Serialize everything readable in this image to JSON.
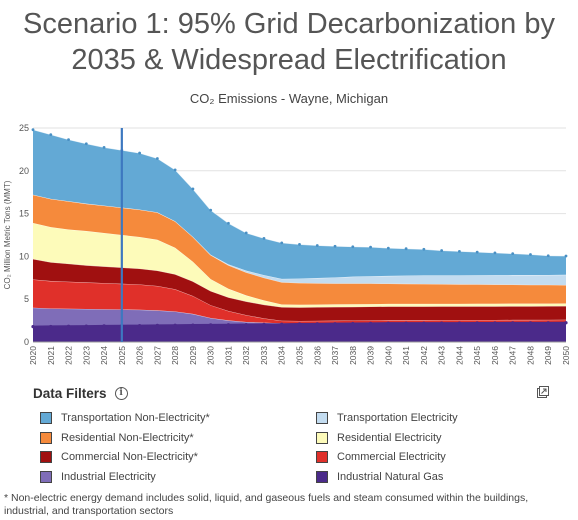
{
  "title_line1": "Scenario 1: 95% Grid Decarbonization by",
  "title_line2": "2035 & Widespread Electrification",
  "filters": {
    "title": "Data Filters",
    "info_icon": "info-circle-icon",
    "export_icon": "export-icon"
  },
  "footnote": "* Non-electric energy demand includes solid, liquid, and gaseous fuels and steam consumed within the buildings, industrial, and transportation sectors",
  "chart_data": {
    "type": "area",
    "stacked": true,
    "title": "CO₂ Emissions - Wayne, Michigan",
    "xlabel": "",
    "ylabel": "CO₂ Million Metric Tons (MMT)",
    "ylim": [
      0,
      25
    ],
    "yticks": [
      0,
      5,
      10,
      15,
      20,
      25
    ],
    "grid": true,
    "current_year_marker": 2025,
    "x": [
      2020,
      2021,
      2022,
      2023,
      2024,
      2025,
      2026,
      2027,
      2028,
      2029,
      2030,
      2031,
      2032,
      2033,
      2034,
      2035,
      2036,
      2037,
      2038,
      2039,
      2040,
      2041,
      2042,
      2043,
      2044,
      2045,
      2046,
      2047,
      2048,
      2049,
      2050
    ],
    "series": [
      {
        "name": "Industrial Natural Gas",
        "color": "#4b2a8a",
        "values": [
          1.8,
          1.82,
          1.84,
          1.86,
          1.88,
          1.9,
          1.92,
          1.94,
          1.96,
          1.98,
          2.0,
          2.02,
          2.04,
          2.06,
          2.08,
          2.1,
          2.12,
          2.14,
          2.16,
          2.18,
          2.2,
          2.2,
          2.2,
          2.21,
          2.21,
          2.22,
          2.22,
          2.23,
          2.23,
          2.24,
          2.25
        ]
      },
      {
        "name": "Industrial Electricity",
        "color": "#7f6db8",
        "values": [
          2.2,
          2.1,
          2.05,
          2.0,
          1.95,
          1.9,
          1.85,
          1.75,
          1.6,
          1.3,
          0.8,
          0.5,
          0.3,
          0.2,
          0.1,
          0.05,
          0.05,
          0.05,
          0.05,
          0.05,
          0.05,
          0.05,
          0.05,
          0.05,
          0.05,
          0.05,
          0.05,
          0.05,
          0.05,
          0.05,
          0.05
        ]
      },
      {
        "name": "Commercial Electricity",
        "color": "#e0302a",
        "values": [
          3.3,
          3.2,
          3.15,
          3.1,
          3.05,
          3.0,
          2.95,
          2.85,
          2.6,
          2.1,
          1.5,
          1.1,
          0.8,
          0.5,
          0.3,
          0.3,
          0.3,
          0.3,
          0.3,
          0.3,
          0.3,
          0.3,
          0.3,
          0.3,
          0.3,
          0.3,
          0.3,
          0.3,
          0.3,
          0.3,
          0.3
        ]
      },
      {
        "name": "Commercial Non-Electricity*",
        "color": "#a01010",
        "values": [
          2.4,
          2.2,
          2.1,
          2.0,
          1.95,
          1.9,
          1.85,
          1.8,
          1.75,
          1.7,
          1.65,
          1.6,
          1.6,
          1.6,
          1.6,
          1.6,
          1.6,
          1.6,
          1.6,
          1.6,
          1.6,
          1.6,
          1.6,
          1.6,
          1.6,
          1.6,
          1.6,
          1.6,
          1.6,
          1.6,
          1.6
        ]
      },
      {
        "name": "Residential Electricity",
        "color": "#fdfbba",
        "values": [
          4.2,
          4.1,
          4.0,
          4.0,
          3.9,
          3.8,
          3.7,
          3.6,
          3.1,
          2.3,
          1.4,
          1.0,
          0.7,
          0.5,
          0.3,
          0.3,
          0.3,
          0.3,
          0.3,
          0.3,
          0.3,
          0.3,
          0.3,
          0.3,
          0.3,
          0.3,
          0.3,
          0.3,
          0.3,
          0.3,
          0.3
        ]
      },
      {
        "name": "Residential Non-Electricity*",
        "color": "#f58a3c",
        "values": [
          3.3,
          3.3,
          3.3,
          3.2,
          3.2,
          3.2,
          3.2,
          3.2,
          3.1,
          2.9,
          2.8,
          2.75,
          2.7,
          2.65,
          2.6,
          2.55,
          2.5,
          2.45,
          2.42,
          2.4,
          2.37,
          2.35,
          2.33,
          2.3,
          2.28,
          2.26,
          2.24,
          2.22,
          2.2,
          2.18,
          2.15
        ]
      },
      {
        "name": "Transportation Electricity",
        "color": "#c3dcf0",
        "values": [
          0.0,
          0.0,
          0.0,
          0.0,
          0.0,
          0.0,
          0.0,
          0.0,
          0.0,
          0.0,
          0.05,
          0.1,
          0.2,
          0.3,
          0.4,
          0.5,
          0.6,
          0.7,
          0.8,
          0.85,
          0.9,
          0.95,
          1.0,
          1.02,
          1.05,
          1.07,
          1.1,
          1.12,
          1.14,
          1.16,
          1.2
        ]
      },
      {
        "name": "Transportation Non-Electricity*",
        "color": "#63a9d5",
        "values": [
          7.6,
          7.5,
          7.2,
          7.0,
          6.8,
          6.7,
          6.6,
          6.3,
          6.0,
          5.6,
          5.2,
          4.8,
          4.4,
          4.3,
          4.2,
          4.0,
          3.8,
          3.65,
          3.5,
          3.4,
          3.25,
          3.15,
          3.05,
          2.9,
          2.8,
          2.7,
          2.6,
          2.5,
          2.4,
          2.25,
          2.2
        ]
      }
    ],
    "legend": [
      {
        "label": "Transportation Non-Electricity*",
        "color": "#63a9d5"
      },
      {
        "label": "Transportation Electricity",
        "color": "#c3dcf0"
      },
      {
        "label": "Residential Non-Electricity*",
        "color": "#f58a3c"
      },
      {
        "label": "Residential Electricity",
        "color": "#fdfbba"
      },
      {
        "label": "Commercial Non-Electricity*",
        "color": "#a01010"
      },
      {
        "label": "Commercial Electricity",
        "color": "#e0302a"
      },
      {
        "label": "Industrial Electricity",
        "color": "#7f6db8"
      },
      {
        "label": "Industrial Natural Gas",
        "color": "#4b2a8a"
      }
    ]
  }
}
